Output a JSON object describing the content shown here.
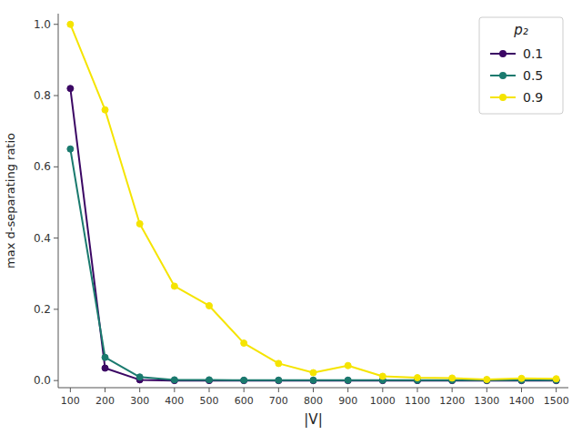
{
  "chart_data": {
    "type": "line",
    "x": [
      100,
      200,
      300,
      400,
      500,
      600,
      700,
      800,
      900,
      1000,
      1100,
      1200,
      1300,
      1400,
      1500
    ],
    "series": [
      {
        "name": "0.1",
        "color": "#3b0764",
        "values": [
          0.82,
          0.035,
          0.002,
          0.0,
          0.0,
          0.0,
          0.0,
          0.0,
          0.0,
          0.0,
          0.0,
          0.0,
          0.0,
          0.0,
          0.0
        ]
      },
      {
        "name": "0.5",
        "color": "#1a7a6e",
        "values": [
          0.65,
          0.065,
          0.01,
          0.002,
          0.002,
          0.001,
          0.001,
          0.001,
          0.001,
          0.001,
          0.001,
          0.001,
          0.001,
          0.001,
          0.001
        ]
      },
      {
        "name": "0.9",
        "color": "#f5e400",
        "values": [
          1.0,
          0.76,
          0.44,
          0.265,
          0.21,
          0.105,
          0.048,
          0.022,
          0.042,
          0.012,
          0.008,
          0.007,
          0.003,
          0.006,
          0.005
        ]
      }
    ],
    "xlabel": "|V|",
    "ylabel": "max d-separating ratio",
    "legend_title": "p₂",
    "legend": "upper right",
    "marker": "circle",
    "line_style": "solid",
    "grid": false,
    "xlim": [
      65,
      1535
    ],
    "ylim": [
      -0.02,
      1.03
    ],
    "xticks": [
      100,
      200,
      300,
      400,
      500,
      600,
      700,
      800,
      900,
      1000,
      1100,
      1200,
      1300,
      1400,
      1500
    ],
    "yticks": [
      {
        "value": 0.0,
        "label": "0.0"
      },
      0.2,
      0.4,
      0.6,
      0.8,
      {
        "value": 1.0,
        "label": "1.0"
      }
    ]
  }
}
